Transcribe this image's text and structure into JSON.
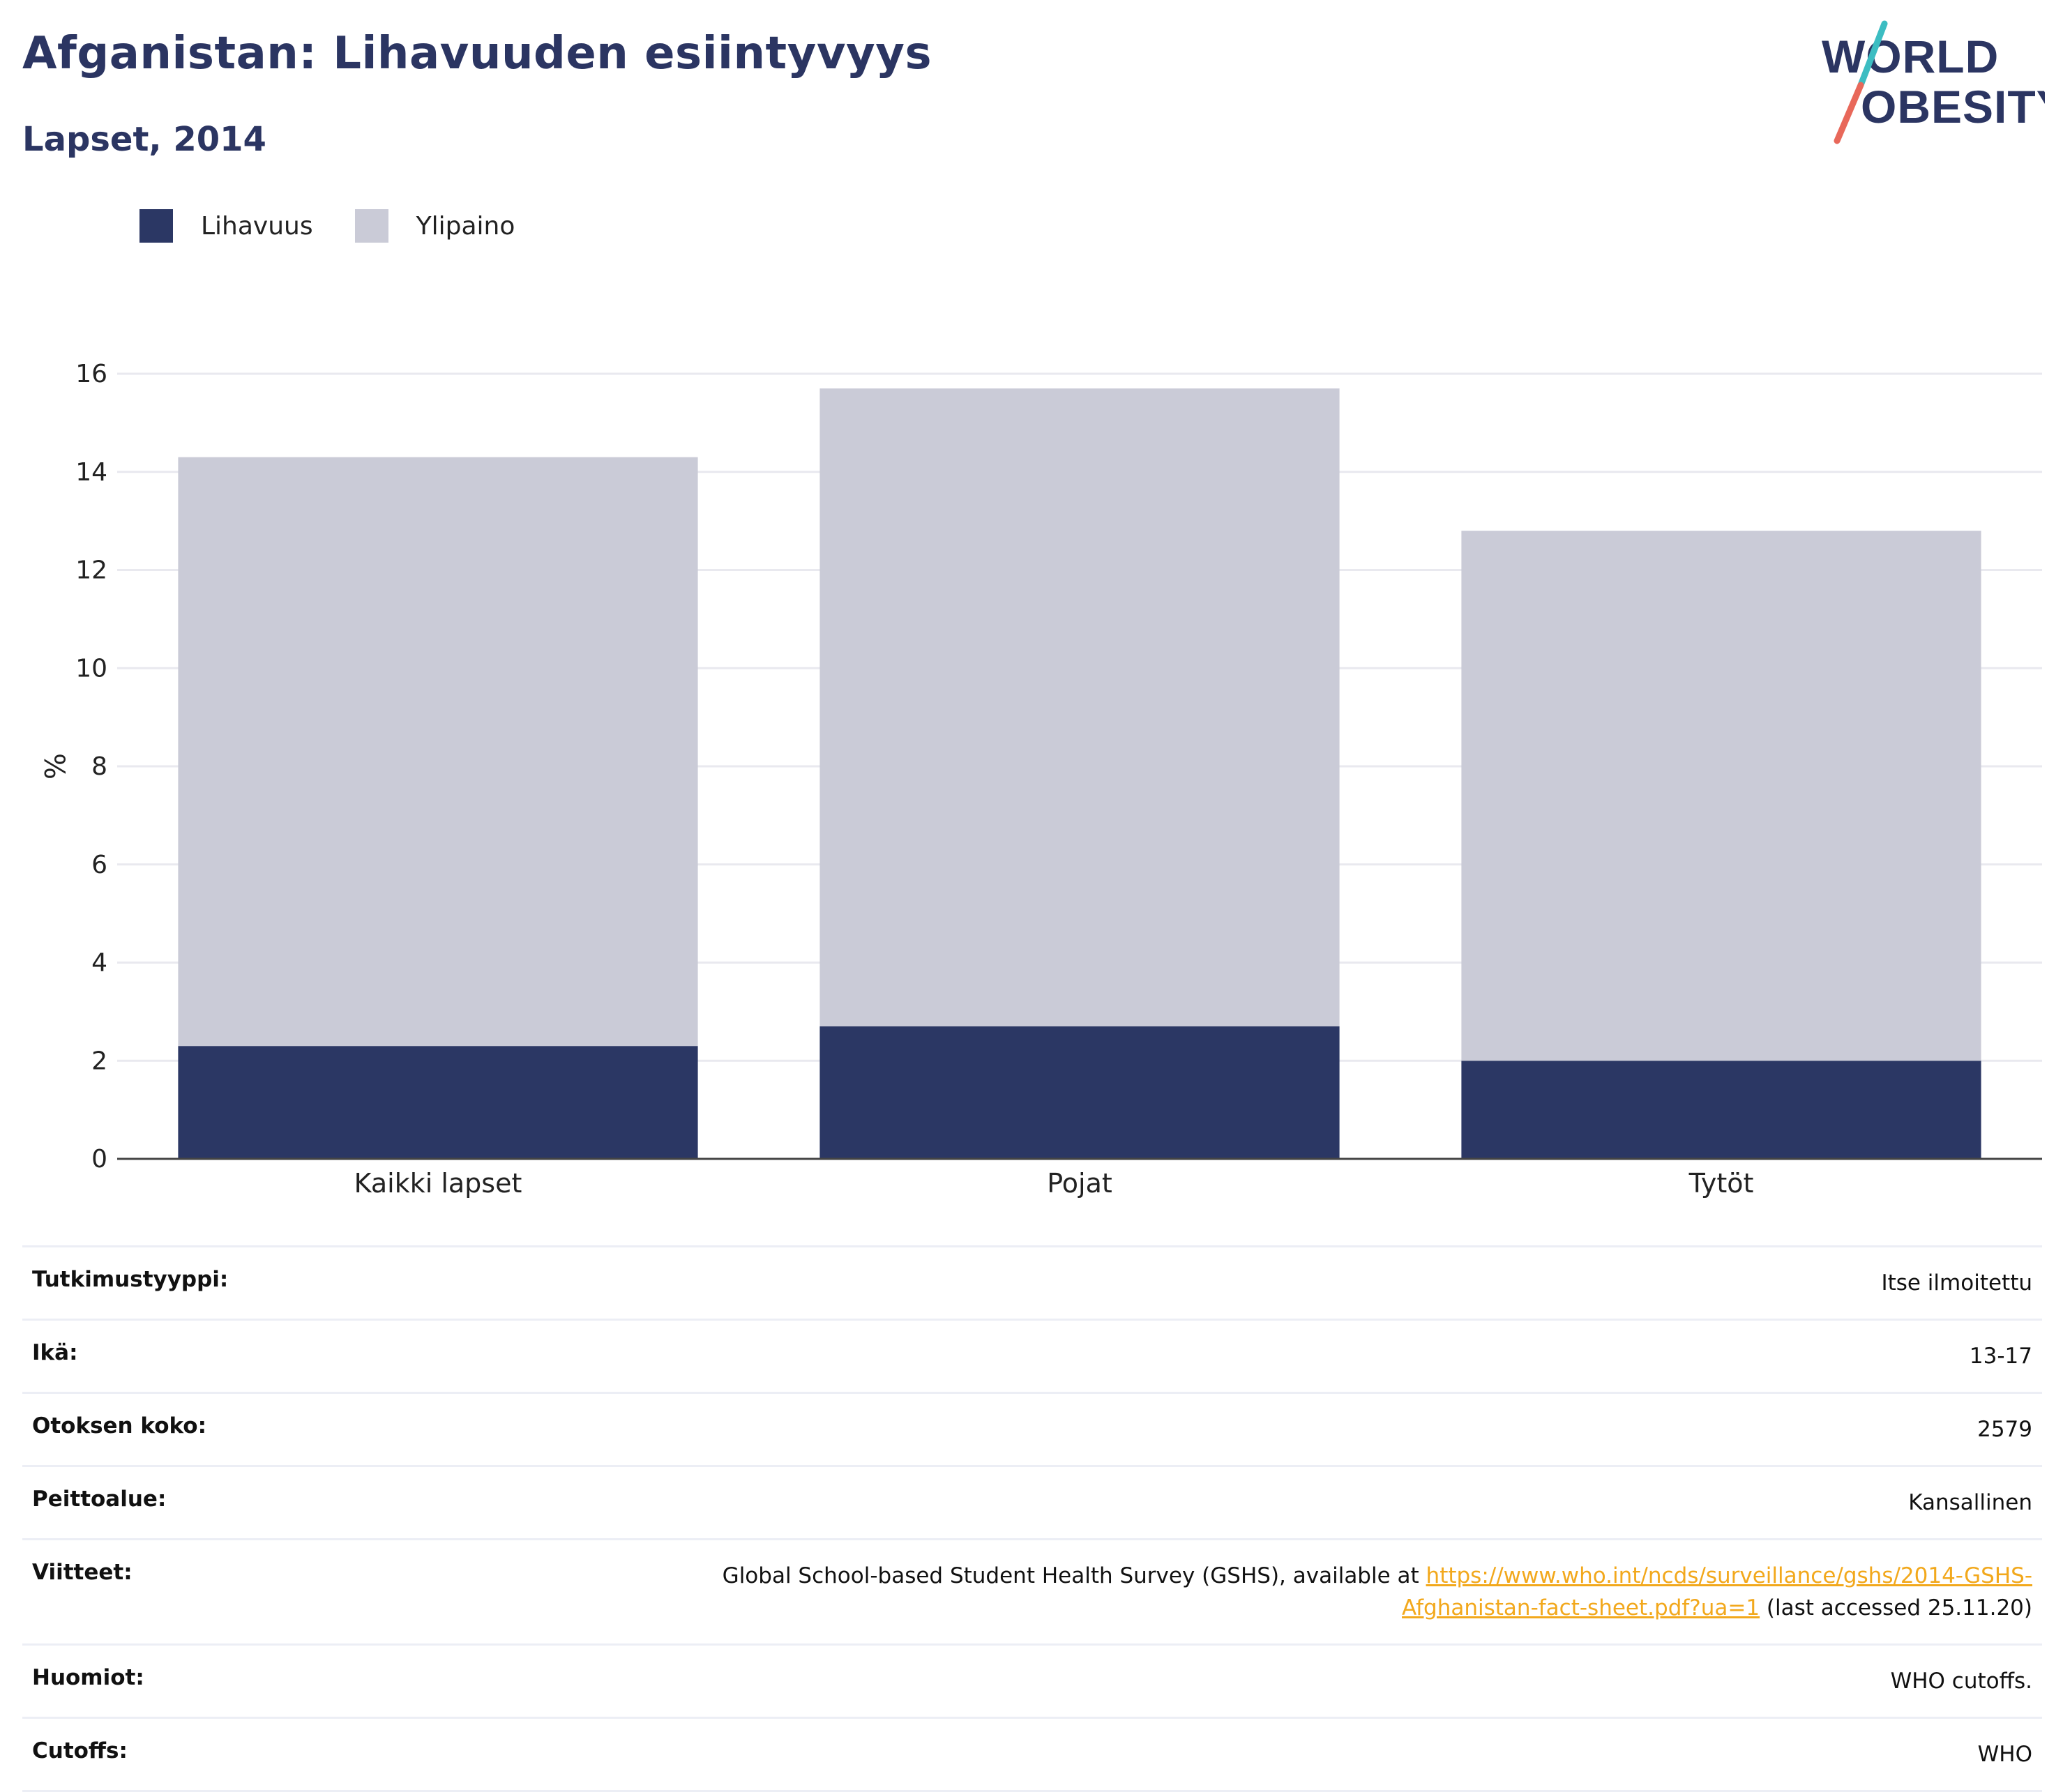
{
  "header": {
    "title": "Afganistan: Lihavuuden esiintyvyys",
    "subtitle": "Lapset, 2014"
  },
  "logo": {
    "line1": "WORLD",
    "line2": "OBESITY",
    "accent_colors": [
      "#3cbdc2",
      "#e8685a"
    ]
  },
  "legend": [
    {
      "label": "Lihavuus",
      "color": "#2b3764"
    },
    {
      "label": "Ylipaino",
      "color": "#cacbd7"
    }
  ],
  "chart_data": {
    "type": "bar",
    "stacked": true,
    "categories": [
      "Kaikki lapset",
      "Pojat",
      "Tytöt"
    ],
    "series": [
      {
        "name": "Lihavuus",
        "values": [
          2.3,
          2.7,
          2.0
        ],
        "color": "#2b3764"
      },
      {
        "name": "Ylipaino",
        "values": [
          12.0,
          13.0,
          10.8
        ],
        "color": "#cacbd7"
      }
    ],
    "totals": [
      14.3,
      15.7,
      12.8
    ],
    "ylabel": "%",
    "xlabel": "",
    "ylim": [
      0,
      16
    ],
    "yticks": [
      0,
      2,
      4,
      6,
      8,
      10,
      12,
      14,
      16
    ],
    "grid": true,
    "legend_position": "top-left"
  },
  "info": {
    "study_type": {
      "label": "Tutkimustyyppi:",
      "value": "Itse ilmoitettu"
    },
    "age": {
      "label": "Ikä:",
      "value": "13-17"
    },
    "sample": {
      "label": "Otoksen koko:",
      "value": "2579"
    },
    "coverage": {
      "label": "Peittoalue:",
      "value": "Kansallinen"
    },
    "refs": {
      "label": "Viitteet:",
      "prefix": "Global School-based Student Health Survey (GSHS), available at ",
      "link_line1": "https://www.who.int/ncds/surveillance/gshs/2014-GSHS-",
      "link_line2": "Afghanistan-fact-sheet.pdf?ua=1",
      "suffix": " (last accessed 25.11.20)"
    },
    "notes": {
      "label": "Huomiot:",
      "value": "WHO cutoffs."
    },
    "cutoffs": {
      "label": "Cutoffs:",
      "value": "WHO"
    }
  }
}
